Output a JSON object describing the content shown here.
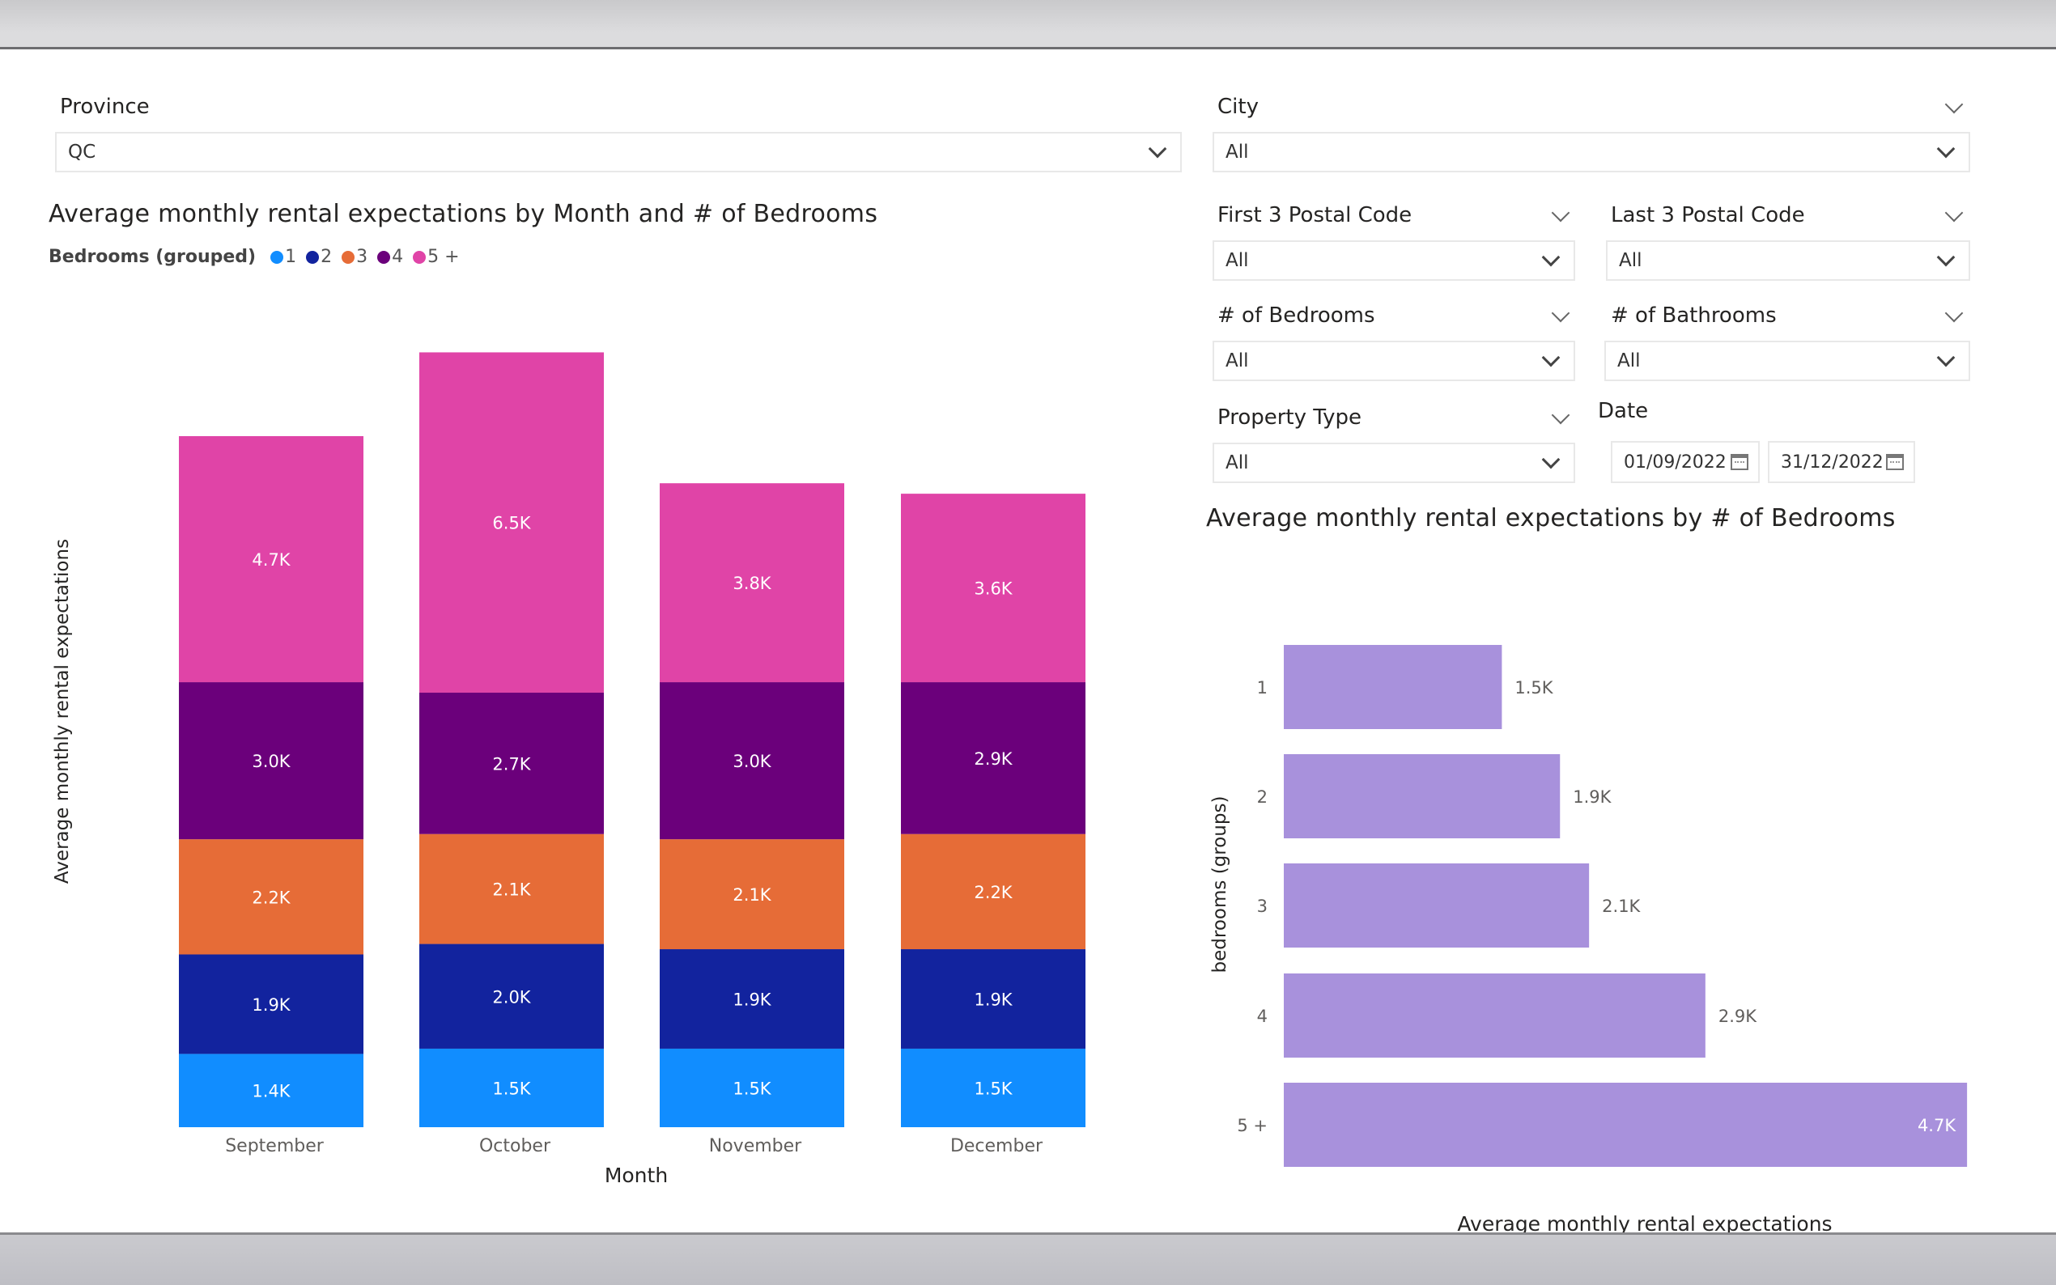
{
  "slicers": {
    "province": {
      "title": "Province",
      "value": "QC"
    },
    "city": {
      "title": "City",
      "value": "All"
    },
    "first3": {
      "title": "First 3 Postal Code",
      "value": "All"
    },
    "last3": {
      "title": "Last 3 Postal Code",
      "value": "All"
    },
    "bedrooms": {
      "title": "# of Bedrooms",
      "value": "All"
    },
    "bathrooms": {
      "title": "# of Bathrooms",
      "value": "All"
    },
    "property_type": {
      "title": "Property Type",
      "value": "All"
    },
    "date": {
      "title": "Date",
      "start": "01/09/2022",
      "end": "31/12/2022"
    }
  },
  "colors": {
    "bed1": "#118dff",
    "bed2": "#12239e",
    "bed3": "#e66c37",
    "bed4": "#6b007b",
    "bed5": "#e044a7",
    "hbar": "#a891dc"
  },
  "icons": [
    "chevron-down-icon",
    "calendar-icon"
  ],
  "chart_data": [
    {
      "type": "bar",
      "stacked": true,
      "title": "Average monthly rental expectations by Month and # of Bedrooms",
      "legend_title": "Bedrooms (grouped)",
      "legend_position": "top-left",
      "xlabel": "Month",
      "ylabel": "Average monthly rental expectations",
      "categories": [
        "September",
        "October",
        "November",
        "December"
      ],
      "series": [
        {
          "name": "1",
          "values": [
            1400,
            1500,
            1500,
            1500
          ],
          "labels": [
            "1.4K",
            "1.5K",
            "1.5K",
            "1.5K"
          ]
        },
        {
          "name": "2",
          "values": [
            1900,
            2000,
            1900,
            1900
          ],
          "labels": [
            "1.9K",
            "2.0K",
            "1.9K",
            "1.9K"
          ]
        },
        {
          "name": "3",
          "values": [
            2200,
            2100,
            2100,
            2200
          ],
          "labels": [
            "2.2K",
            "2.1K",
            "2.1K",
            "2.2K"
          ]
        },
        {
          "name": "4",
          "values": [
            3000,
            2700,
            3000,
            2900
          ],
          "labels": [
            "3.0K",
            "2.7K",
            "3.0K",
            "2.9K"
          ]
        },
        {
          "name": "5 +",
          "values": [
            4700,
            6500,
            3800,
            3600
          ],
          "labels": [
            "4.7K",
            "6.5K",
            "3.8K",
            "3.6K"
          ]
        }
      ],
      "grid": false
    },
    {
      "type": "bar",
      "orientation": "horizontal",
      "title": "Average monthly rental expectations by # of Bedrooms",
      "xlabel": "Average monthly rental expectations",
      "ylabel": "bedrooms (groups)",
      "categories": [
        "1",
        "2",
        "3",
        "4",
        "5 +"
      ],
      "values": [
        1500,
        1900,
        2100,
        2900,
        4700
      ],
      "labels": [
        "1.5K",
        "1.9K",
        "2.1K",
        "2.9K",
        "4.7K"
      ],
      "grid": false
    }
  ]
}
